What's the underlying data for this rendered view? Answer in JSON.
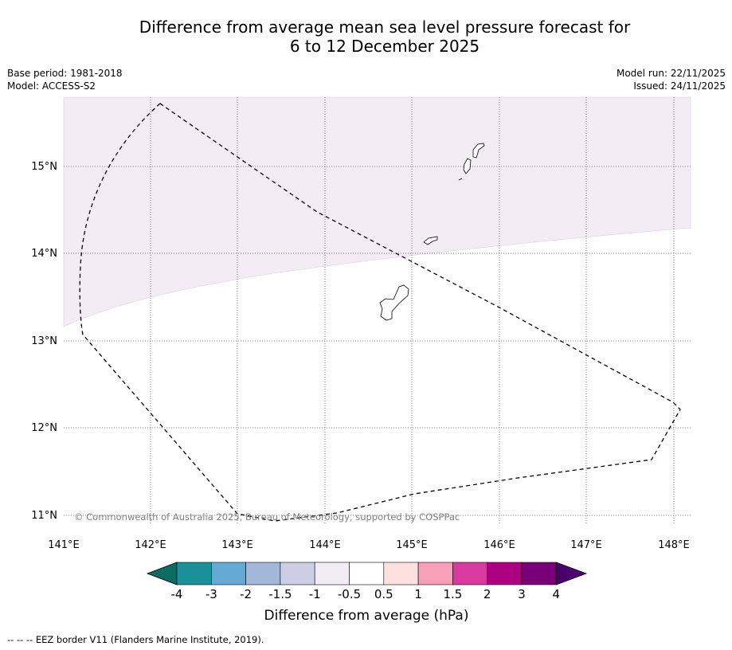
{
  "title": {
    "line1": "Difference from average mean sea level pressure forecast for",
    "line2": "6 to 12 December 2025"
  },
  "meta": {
    "base_period": "Base period: 1981-2018",
    "model": "Model: ACCESS-S2",
    "model_run": "Model run: 22/11/2025",
    "issued": "Issued: 24/11/2025"
  },
  "map": {
    "lon_ticks": [
      "141°E",
      "142°E",
      "143°E",
      "144°E",
      "145°E",
      "146°E",
      "147°E",
      "148°E"
    ],
    "lat_ticks": [
      "15°N",
      "14°N",
      "13°N",
      "12°N",
      "11°N"
    ],
    "copyright": "© Commonwealth of Australia 2025, Bureau of Meteorology, supported by COSPPac",
    "shaded_band": "-1 to -0.5 hPa"
  },
  "colorbar": {
    "ticks": [
      "-4",
      "-3",
      "-2",
      "-1.5",
      "-1",
      "-0.5",
      "0.5",
      "1",
      "1.5",
      "2",
      "3",
      "4"
    ],
    "colors": [
      "#0e6b62",
      "#1a9199",
      "#64aad4",
      "#a3b8d9",
      "#cdcde5",
      "#f3ecf5",
      "#ffffff",
      "#fde0df",
      "#f8a0b9",
      "#d93aa0",
      "#ad0081",
      "#7a007a",
      "#4a006a"
    ],
    "label": "Difference from average (hPa)"
  },
  "footnote": "--  --  -- EEZ border V11 (Flanders Marine Institute, 2019)."
}
